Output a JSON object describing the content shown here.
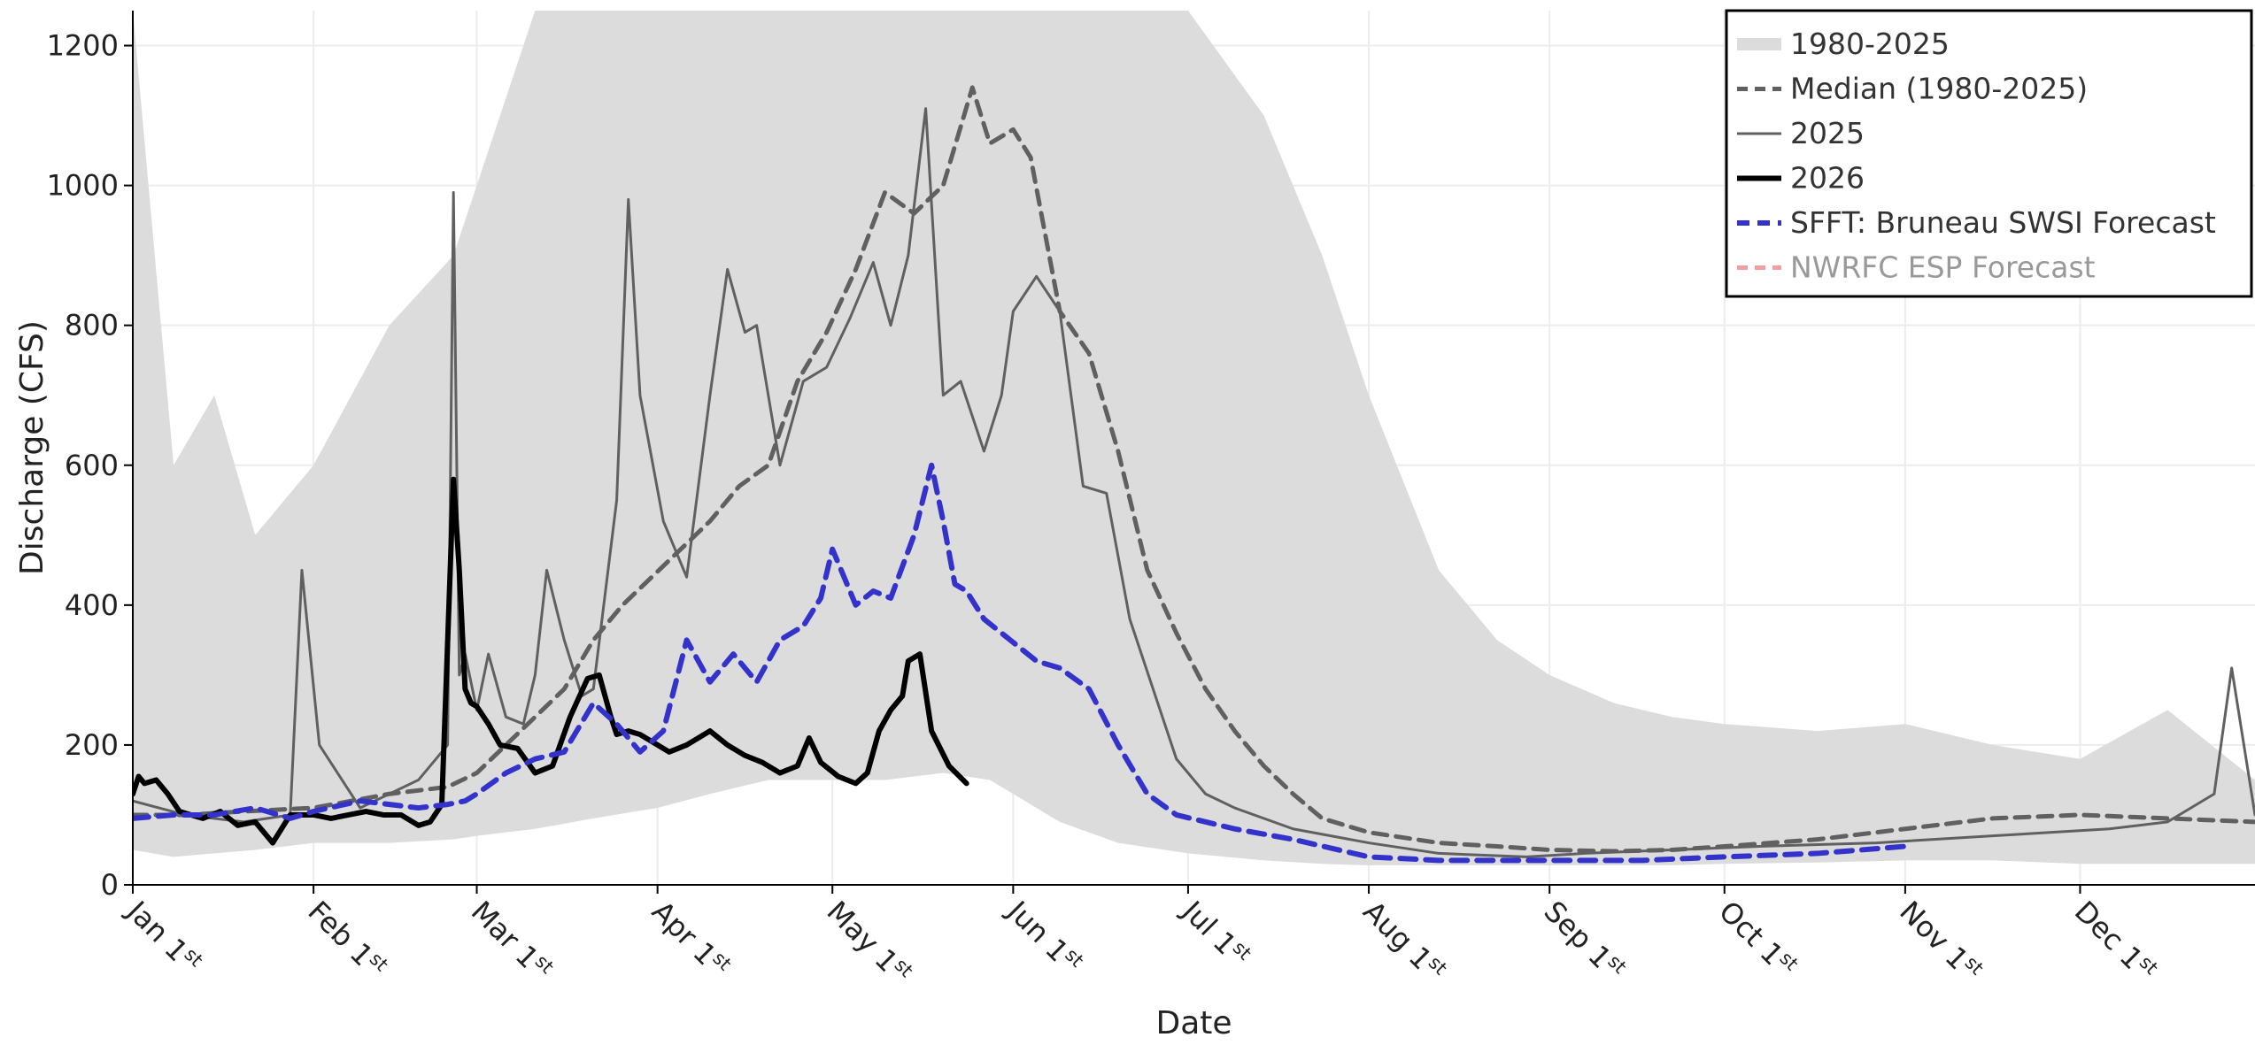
{
  "chart_data": {
    "type": "line",
    "xlabel": "Date",
    "ylabel": "Discharge (CFS)",
    "ylim": [
      0,
      1250
    ],
    "yticks": [
      0,
      200,
      400,
      600,
      800,
      1000,
      1200
    ],
    "x_unit": "day_of_year",
    "xlim": [
      1,
      365
    ],
    "x_ticks": [
      {
        "doy": 1,
        "label": "Jan 1",
        "sup": "st"
      },
      {
        "doy": 32,
        "label": "Feb 1",
        "sup": "st"
      },
      {
        "doy": 60,
        "label": "Mar 1",
        "sup": "st"
      },
      {
        "doy": 91,
        "label": "Apr 1",
        "sup": "st"
      },
      {
        "doy": 121,
        "label": "May 1",
        "sup": "st"
      },
      {
        "doy": 152,
        "label": "Jun 1",
        "sup": "st"
      },
      {
        "doy": 182,
        "label": "Jul 1",
        "sup": "st"
      },
      {
        "doy": 213,
        "label": "Aug 1",
        "sup": "st"
      },
      {
        "doy": 244,
        "label": "Sep 1",
        "sup": "st"
      },
      {
        "doy": 274,
        "label": "Oct 1",
        "sup": "st"
      },
      {
        "doy": 305,
        "label": "Nov 1",
        "sup": "st"
      },
      {
        "doy": 335,
        "label": "Dec 1",
        "sup": "st"
      }
    ],
    "grid": true,
    "legend_position": "top-right",
    "colors": {
      "band": "#dcdcdc",
      "historical_lines": "#c8c8c8",
      "median": "#606060",
      "year_2025": "#606060",
      "year_2026": "#000000",
      "sfft": "#3333cc",
      "nwrfc": "#f0a0a0",
      "nwrfc_text": "#999999"
    },
    "legend": [
      {
        "label": "1980-2025",
        "style": "band"
      },
      {
        "label": "Median (1980-2025)",
        "style": "median"
      },
      {
        "label": "2025",
        "style": "year_2025"
      },
      {
        "label": "2026",
        "style": "year_2026"
      },
      {
        "label": "SFFT: Bruneau SWSI Forecast",
        "style": "sfft"
      },
      {
        "label": "NWRFC ESP Forecast",
        "style": "nwrfc"
      }
    ],
    "band_1980_2025": {
      "x": [
        1,
        8,
        15,
        22,
        32,
        45,
        56,
        60,
        70,
        80,
        91,
        100,
        110,
        121,
        130,
        140,
        148,
        152,
        160,
        170,
        182,
        195,
        205,
        213,
        225,
        235,
        244,
        255,
        265,
        274,
        290,
        305,
        320,
        335,
        350,
        365
      ],
      "max": [
        1250,
        600,
        700,
        500,
        600,
        800,
        900,
        1000,
        1250,
        1250,
        1250,
        1250,
        1250,
        1250,
        1250,
        1250,
        1250,
        1250,
        1250,
        1250,
        1250,
        1100,
        900,
        700,
        450,
        350,
        300,
        260,
        240,
        230,
        220,
        230,
        200,
        180,
        250,
        150
      ],
      "min": [
        50,
        40,
        45,
        50,
        60,
        60,
        65,
        70,
        80,
        95,
        110,
        130,
        150,
        150,
        150,
        160,
        150,
        130,
        90,
        60,
        45,
        35,
        30,
        28,
        28,
        28,
        28,
        28,
        28,
        30,
        32,
        35,
        35,
        30,
        30,
        30
      ]
    },
    "series": [
      {
        "name": "Median (1980-2025)",
        "x": [
          1,
          10,
          20,
          32,
          45,
          55,
          60,
          65,
          70,
          75,
          80,
          85,
          90,
          95,
          100,
          105,
          110,
          115,
          120,
          125,
          130,
          135,
          140,
          145,
          148,
          152,
          155,
          160,
          165,
          170,
          175,
          180,
          185,
          190,
          195,
          200,
          205,
          213,
          225,
          235,
          244,
          255,
          265,
          274,
          290,
          305,
          320,
          335,
          350,
          365
        ],
        "y": [
          100,
          100,
          105,
          110,
          130,
          140,
          160,
          200,
          240,
          280,
          350,
          400,
          440,
          480,
          520,
          570,
          600,
          720,
          790,
          880,
          990,
          960,
          1000,
          1140,
          1060,
          1080,
          1040,
          820,
          760,
          620,
          450,
          360,
          280,
          220,
          170,
          130,
          95,
          75,
          60,
          55,
          50,
          48,
          50,
          55,
          65,
          80,
          95,
          100,
          95,
          90
        ]
      },
      {
        "name": "2025",
        "x": [
          1,
          10,
          20,
          28,
          30,
          33,
          40,
          50,
          55,
          56,
          57,
          58,
          60,
          62,
          65,
          68,
          70,
          72,
          75,
          78,
          80,
          84,
          86,
          88,
          92,
          96,
          100,
          103,
          106,
          108,
          112,
          116,
          120,
          124,
          128,
          131,
          134,
          137,
          140,
          143,
          147,
          150,
          152,
          156,
          160,
          164,
          168,
          172,
          176,
          180,
          185,
          190,
          200,
          213,
          225,
          240,
          250,
          265,
          280,
          300,
          320,
          340,
          350,
          358,
          361,
          365
        ],
        "y": [
          120,
          100,
          90,
          100,
          450,
          200,
          110,
          150,
          200,
          990,
          300,
          330,
          250,
          330,
          240,
          230,
          300,
          450,
          350,
          270,
          280,
          550,
          980,
          700,
          520,
          440,
          700,
          880,
          790,
          800,
          600,
          720,
          740,
          810,
          890,
          800,
          900,
          1110,
          700,
          720,
          620,
          700,
          820,
          870,
          820,
          570,
          560,
          380,
          280,
          180,
          130,
          110,
          80,
          60,
          45,
          40,
          45,
          50,
          55,
          60,
          70,
          80,
          90,
          130,
          310,
          100
        ]
      },
      {
        "name": "2026",
        "x": [
          1,
          2,
          3,
          5,
          7,
          9,
          11,
          13,
          16,
          19,
          22,
          25,
          28,
          30,
          32,
          35,
          38,
          41,
          44,
          47,
          50,
          52,
          54,
          56,
          57,
          58,
          59,
          60,
          62,
          64,
          67,
          70,
          73,
          76,
          79,
          81,
          83,
          84,
          86,
          88,
          90,
          93,
          96,
          100,
          103,
          106,
          109,
          112,
          115,
          117,
          119,
          122,
          125,
          127,
          129,
          131,
          133,
          134,
          136,
          138,
          141,
          144
        ],
        "y": [
          130,
          155,
          145,
          150,
          130,
          105,
          100,
          95,
          105,
          85,
          90,
          60,
          100,
          100,
          100,
          95,
          100,
          105,
          100,
          100,
          85,
          90,
          115,
          580,
          450,
          280,
          260,
          255,
          230,
          200,
          195,
          160,
          170,
          240,
          295,
          300,
          240,
          215,
          220,
          215,
          205,
          190,
          200,
          220,
          200,
          185,
          175,
          160,
          170,
          210,
          175,
          155,
          145,
          160,
          220,
          250,
          270,
          320,
          330,
          220,
          170,
          145
        ]
      },
      {
        "name": "SFFT: Bruneau SWSI Forecast",
        "x": [
          1,
          8,
          15,
          22,
          28,
          32,
          40,
          50,
          55,
          58,
          60,
          65,
          70,
          75,
          80,
          84,
          88,
          92,
          96,
          100,
          104,
          108,
          112,
          116,
          119,
          121,
          125,
          128,
          131,
          135,
          138,
          140,
          142,
          144,
          147,
          150,
          153,
          156,
          160,
          165,
          170,
          175,
          180,
          190,
          200,
          213,
          225,
          244,
          260,
          274,
          290,
          305
        ],
        "y": [
          95,
          100,
          100,
          110,
          95,
          105,
          120,
          110,
          115,
          120,
          130,
          160,
          180,
          190,
          260,
          230,
          190,
          220,
          350,
          290,
          330,
          290,
          350,
          370,
          410,
          480,
          400,
          420,
          410,
          500,
          600,
          520,
          430,
          420,
          380,
          360,
          340,
          320,
          310,
          280,
          200,
          130,
          100,
          80,
          65,
          40,
          35,
          35,
          35,
          40,
          45,
          55
        ]
      }
    ]
  }
}
